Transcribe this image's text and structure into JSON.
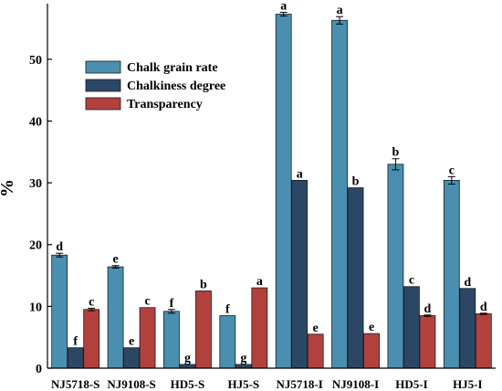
{
  "chart_data": {
    "type": "bar",
    "ylabel": "%",
    "ylim": [
      0,
      59
    ],
    "yticks": [
      0,
      10,
      20,
      30,
      40,
      50
    ],
    "categories": [
      "NJ5718-S",
      "NJ9108-S",
      "HD5-S",
      "HJ5-S",
      "NJ5718-I",
      "NJ9108-I",
      "HD5-I",
      "HJ5-I"
    ],
    "series": [
      {
        "name": "Chalk grain rate",
        "color": "#4a8fb0",
        "values": [
          18.3,
          16.4,
          9.2,
          8.5,
          57.3,
          56.3,
          33.0,
          30.4
        ],
        "errors": [
          0.3,
          0.2,
          0.3,
          0.0,
          0.3,
          0.6,
          0.9,
          0.6
        ],
        "sig": [
          "d",
          "e",
          "f",
          "f",
          "a",
          "a",
          "b",
          "c"
        ]
      },
      {
        "name": "Chalkiness degree",
        "color": "#2c4766",
        "values": [
          3.3,
          3.3,
          0.6,
          0.6,
          30.4,
          29.2,
          13.2,
          12.9
        ],
        "errors": [
          0.0,
          0.0,
          0.0,
          0.0,
          0.0,
          0.0,
          0.0,
          0.0
        ],
        "sig": [
          "f",
          "e",
          "g",
          "g",
          "a",
          "b",
          "c",
          "d"
        ]
      },
      {
        "name": "Transparency",
        "color": "#b2413d",
        "values": [
          9.5,
          9.8,
          12.5,
          13.0,
          5.5,
          5.6,
          8.5,
          8.8
        ],
        "errors": [
          0.2,
          0.0,
          0.0,
          0.0,
          0.0,
          0.0,
          0.1,
          0.1
        ],
        "sig": [
          "c",
          "c",
          "b",
          "a",
          "e",
          "e",
          "d",
          "d"
        ]
      }
    ],
    "legend_position": "upper-left",
    "grid": false
  }
}
